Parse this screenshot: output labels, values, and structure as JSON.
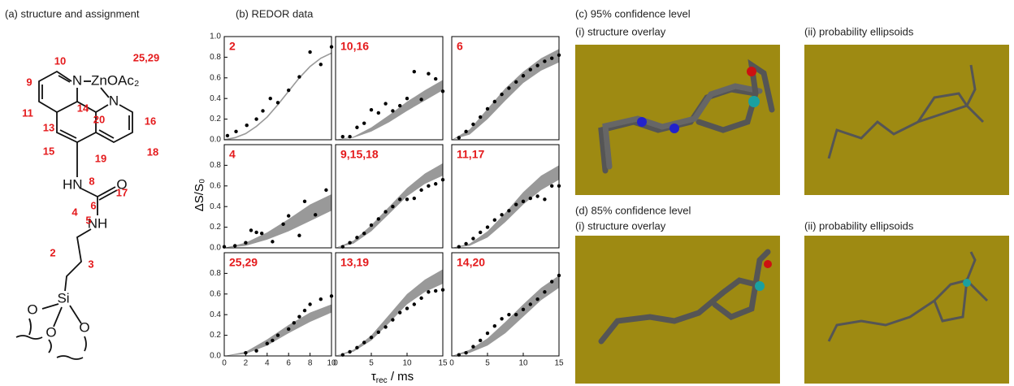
{
  "panels": {
    "a": "(a) structure and assignment",
    "b": "(b) REDOR data",
    "c": "(c) 95% confidence level",
    "c_i": "(i) structure overlay",
    "c_ii": "(ii) probability ellipsoids",
    "d": "(d) 85% confidence level",
    "d_i": "(i) structure overlay",
    "d_ii": "(ii) probability ellipsoids"
  },
  "structure": {
    "atoms": [
      "N",
      "ZnOAc₂",
      "N",
      "HN",
      "O",
      "NH",
      "Si",
      "O",
      "O",
      "O"
    ],
    "numbers": [
      "10",
      "25,29",
      "9",
      "11",
      "14",
      "20",
      "16",
      "13",
      "15",
      "19",
      "18",
      "17",
      "8",
      "6",
      "5",
      "4",
      "3",
      "2"
    ]
  },
  "axis_labels": {
    "y": "ΔS/S₀",
    "x_symbol": "τ",
    "x_subscript": "rec",
    "x_unit": " / ms"
  },
  "chart_data": [
    {
      "type": "scatter",
      "title": "2",
      "xlim": [
        0,
        10
      ],
      "ylim": [
        0,
        1
      ],
      "yticks": [
        {
          "value": 0,
          "label": "0.0"
        },
        0.2,
        0.4,
        0.6,
        0.8,
        {
          "value": 1,
          "label": "1.0"
        }
      ],
      "x": [
        0.3,
        1.1,
        2.1,
        3,
        3.6,
        4.3,
        5,
        6,
        7,
        8,
        9,
        10
      ],
      "values": [
        0.04,
        0.08,
        0.14,
        0.2,
        0.28,
        0.4,
        0.36,
        0.48,
        0.61,
        0.85,
        0.73,
        0.9
      ],
      "fit_x": [
        0,
        1,
        2,
        3,
        4,
        5,
        6,
        7,
        8,
        9,
        10
      ],
      "fit": [
        0,
        0.02,
        0.06,
        0.13,
        0.22,
        0.34,
        0.47,
        0.6,
        0.71,
        0.79,
        0.84
      ],
      "point_color": "#000000",
      "fit_color": "#999999"
    },
    {
      "type": "scatter",
      "title": "10,16",
      "xlim": [
        0,
        15
      ],
      "ylim": [
        0,
        1
      ],
      "x": [
        1,
        2,
        3,
        4,
        5,
        6,
        7,
        8,
        9,
        10,
        11,
        12,
        13,
        14,
        15
      ],
      "values": [
        0.03,
        0.03,
        0.12,
        0.16,
        0.29,
        0.26,
        0.35,
        0.28,
        0.33,
        0.4,
        0.66,
        0.39,
        0.64,
        0.59,
        0.47
      ],
      "fit_x": [
        0,
        2.5,
        5,
        7.5,
        10,
        12.5,
        15
      ],
      "fit_low": [
        0,
        0.02,
        0.08,
        0.17,
        0.28,
        0.38,
        0.48
      ],
      "fit_high": [
        0,
        0.03,
        0.12,
        0.24,
        0.37,
        0.48,
        0.58
      ],
      "point_color": "#000000",
      "fit_color": "#999999"
    },
    {
      "type": "scatter",
      "title": "6",
      "xlim": [
        0,
        15
      ],
      "ylim": [
        0,
        1
      ],
      "x": [
        1,
        2,
        3,
        4,
        5,
        6,
        7,
        8,
        9,
        10,
        11,
        12,
        13,
        14,
        15
      ],
      "values": [
        0.02,
        0.08,
        0.15,
        0.22,
        0.3,
        0.37,
        0.44,
        0.5,
        0.56,
        0.62,
        0.68,
        0.72,
        0.76,
        0.79,
        0.82
      ],
      "fit_x": [
        0,
        2.5,
        5,
        7.5,
        10,
        12.5,
        15
      ],
      "fit_low": [
        0,
        0.05,
        0.2,
        0.38,
        0.55,
        0.67,
        0.75
      ],
      "fit_high": [
        0,
        0.1,
        0.3,
        0.5,
        0.66,
        0.79,
        0.88
      ],
      "point_color": "#000000",
      "fit_color": "#999999"
    },
    {
      "type": "scatter",
      "title": "4",
      "xlim": [
        0,
        10
      ],
      "ylim": [
        0,
        1
      ],
      "yticks": [
        {
          "value": 0,
          "label": "0.0"
        },
        0.2,
        0.4,
        0.6,
        0.8
      ],
      "x": [
        0,
        1,
        2,
        2.5,
        3,
        3.5,
        4.5,
        5.5,
        6,
        7,
        7.5,
        8.5,
        9.5
      ],
      "values": [
        0.01,
        0.02,
        0.05,
        0.17,
        0.15,
        0.14,
        0.06,
        0.23,
        0.31,
        0.12,
        0.45,
        0.32,
        0.56
      ],
      "fit_x": [
        0,
        2,
        4,
        6,
        8,
        10
      ],
      "fit_low": [
        0,
        0.02,
        0.08,
        0.16,
        0.26,
        0.36
      ],
      "fit_high": [
        0,
        0.05,
        0.15,
        0.28,
        0.42,
        0.52
      ],
      "point_color": "#000000",
      "fit_color": "#999999"
    },
    {
      "type": "scatter",
      "title": "9,15,18",
      "xlim": [
        0,
        15
      ],
      "ylim": [
        0,
        1
      ],
      "x": [
        1,
        2,
        3,
        4,
        5,
        6,
        7,
        8,
        9,
        10,
        11,
        12,
        13,
        14,
        15
      ],
      "values": [
        0.01,
        0.05,
        0.1,
        0.14,
        0.22,
        0.28,
        0.35,
        0.4,
        0.47,
        0.47,
        0.48,
        0.56,
        0.6,
        0.62,
        0.66
      ],
      "fit_x": [
        0,
        2.5,
        5,
        7.5,
        10,
        12.5,
        15
      ],
      "fit_low": [
        0,
        0.04,
        0.16,
        0.33,
        0.5,
        0.62,
        0.7
      ],
      "fit_high": [
        0,
        0.07,
        0.22,
        0.4,
        0.58,
        0.72,
        0.82
      ],
      "point_color": "#000000",
      "fit_color": "#999999"
    },
    {
      "type": "scatter",
      "title": "11,17",
      "xlim": [
        0,
        15
      ],
      "ylim": [
        0,
        1
      ],
      "x": [
        1,
        2,
        3,
        4,
        5,
        6,
        7,
        8,
        9,
        10,
        11,
        12,
        13,
        14,
        15
      ],
      "values": [
        0.01,
        0.04,
        0.09,
        0.15,
        0.2,
        0.27,
        0.32,
        0.36,
        0.42,
        0.45,
        0.48,
        0.5,
        0.47,
        0.6,
        0.6
      ],
      "fit_x": [
        0,
        2.5,
        5,
        7.5,
        10,
        12.5,
        15
      ],
      "fit_low": [
        0,
        0.02,
        0.1,
        0.25,
        0.42,
        0.56,
        0.66
      ],
      "fit_high": [
        0,
        0.04,
        0.16,
        0.34,
        0.54,
        0.7,
        0.8
      ],
      "point_color": "#000000",
      "fit_color": "#999999"
    },
    {
      "type": "scatter",
      "title": "25,29",
      "xlim": [
        0,
        10
      ],
      "ylim": [
        0,
        1
      ],
      "yticks": [
        {
          "value": 0,
          "label": "0.0"
        },
        0.2,
        0.4,
        0.6,
        0.8
      ],
      "xticks": [
        0,
        2,
        4,
        6,
        8,
        10
      ],
      "x": [
        2,
        3,
        4,
        4.5,
        5,
        6,
        6.5,
        7,
        7.5,
        8,
        9,
        10
      ],
      "values": [
        0.03,
        0.05,
        0.12,
        0.15,
        0.2,
        0.26,
        0.32,
        0.38,
        0.44,
        0.5,
        0.55,
        0.58
      ],
      "fit_x": [
        0,
        2,
        4,
        6,
        8,
        10
      ],
      "fit_low": [
        0,
        0.02,
        0.1,
        0.22,
        0.33,
        0.42
      ],
      "fit_high": [
        0,
        0.04,
        0.16,
        0.3,
        0.42,
        0.5
      ],
      "point_color": "#000000",
      "fit_color": "#999999"
    },
    {
      "type": "scatter",
      "title": "13,19",
      "xlim": [
        0,
        15
      ],
      "ylim": [
        0,
        1
      ],
      "xticks": [
        0,
        5,
        10,
        15
      ],
      "x": [
        1,
        2,
        3,
        4,
        5,
        6,
        7,
        8,
        9,
        10,
        11,
        12,
        13,
        14,
        15
      ],
      "values": [
        0.01,
        0.04,
        0.08,
        0.13,
        0.18,
        0.23,
        0.28,
        0.35,
        0.42,
        0.46,
        0.5,
        0.56,
        0.62,
        0.63,
        0.64
      ],
      "fit_x": [
        0,
        2.5,
        5,
        7.5,
        10,
        12.5,
        15
      ],
      "fit_low": [
        0,
        0.04,
        0.15,
        0.32,
        0.5,
        0.62,
        0.7
      ],
      "fit_high": [
        0,
        0.06,
        0.2,
        0.4,
        0.6,
        0.74,
        0.84
      ],
      "point_color": "#000000",
      "fit_color": "#999999"
    },
    {
      "type": "scatter",
      "title": "14,20",
      "xlim": [
        0,
        15
      ],
      "ylim": [
        0,
        1
      ],
      "xticks": [
        0,
        5,
        10,
        15
      ],
      "x": [
        1,
        2,
        3,
        4,
        5,
        6,
        7,
        8,
        9,
        10,
        11,
        12,
        13,
        14,
        15
      ],
      "values": [
        0.01,
        0.03,
        0.09,
        0.15,
        0.22,
        0.29,
        0.36,
        0.4,
        0.4,
        0.45,
        0.5,
        0.55,
        0.62,
        0.72,
        0.78
      ],
      "fit_x": [
        0,
        2.5,
        5,
        7.5,
        10,
        12.5,
        15
      ],
      "fit_low": [
        0,
        0.03,
        0.1,
        0.22,
        0.38,
        0.54,
        0.66
      ],
      "fit_high": [
        0,
        0.06,
        0.17,
        0.33,
        0.5,
        0.66,
        0.78
      ],
      "point_color": "#000000",
      "fit_color": "#999999"
    }
  ]
}
